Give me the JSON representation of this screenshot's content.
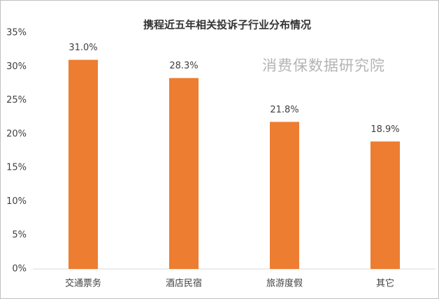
{
  "chart_data": {
    "type": "bar",
    "title": "携程近五年相关投诉子行业分布情况",
    "annotation": "消费保数据研究院",
    "categories": [
      "交通票务",
      "酒店民宿",
      "旅游度假",
      "其它"
    ],
    "values": [
      31.0,
      28.3,
      21.8,
      18.9
    ],
    "value_labels": [
      "31.0%",
      "28.3%",
      "21.8%",
      "18.9%"
    ],
    "color": "#ed7d31",
    "ylim": [
      0,
      35
    ],
    "yticks": [
      {
        "value": 0,
        "label": "0%"
      },
      {
        "value": 5,
        "label": "5%"
      },
      {
        "value": 10,
        "label": "10%"
      },
      {
        "value": 15,
        "label": "15%"
      },
      {
        "value": 20,
        "label": "20%"
      },
      {
        "value": 25,
        "label": "25%"
      },
      {
        "value": 30,
        "label": "30%"
      },
      {
        "value": 35,
        "label": "35%"
      }
    ],
    "grid": false
  }
}
